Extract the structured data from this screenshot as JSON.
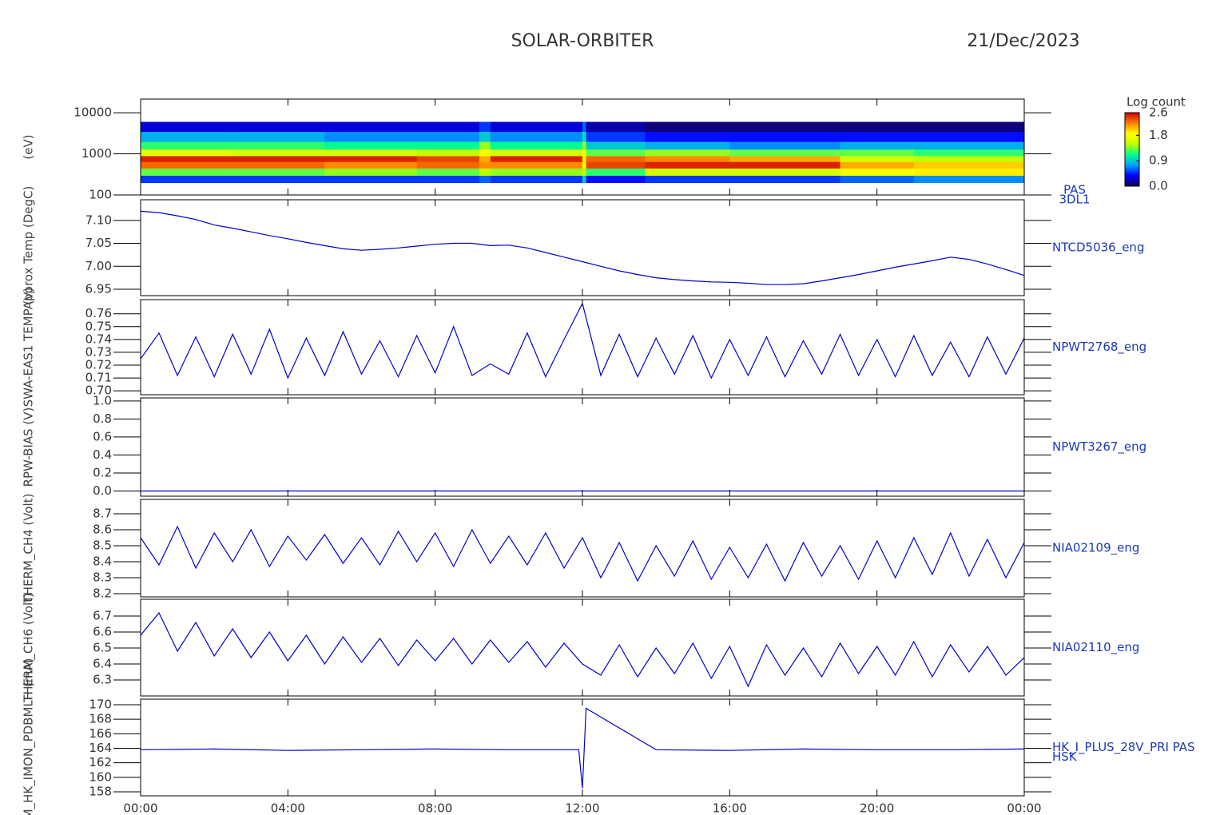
{
  "header": {
    "title": "SOLAR-ORBITER",
    "date": "21/Dec/2023"
  },
  "chart_data": [
    {
      "type": "heatmap",
      "ylabel": "(eV)",
      "right_label": [
        "PAS",
        "3DL1"
      ],
      "log": true,
      "ylim": [
        100,
        21500
      ],
      "yticks": [
        100,
        1000,
        10000
      ],
      "x_edges": [
        0,
        2.5,
        5,
        7.5,
        9.2,
        9.5,
        12,
        12.1,
        13.7,
        16,
        19,
        21,
        24
      ],
      "y_edges": [
        200,
        300,
        450,
        650,
        900,
        1300,
        2000,
        3500,
        6000
      ],
      "z": [
        [
          0.5,
          1.3,
          2.3,
          2.5,
          1.7,
          1.2,
          0.8,
          0.3
        ],
        [
          0.5,
          1.3,
          2.3,
          2.5,
          1.6,
          1.2,
          0.8,
          0.3
        ],
        [
          0.5,
          1.4,
          2.2,
          2.5,
          1.6,
          1.1,
          0.7,
          0.3
        ],
        [
          0.5,
          1.3,
          2.3,
          2.4,
          1.5,
          1.1,
          0.7,
          0.3
        ],
        [
          0.6,
          1.5,
          2.2,
          2.1,
          1.8,
          1.4,
          0.9,
          0.5
        ],
        [
          0.5,
          1.4,
          2.2,
          2.5,
          1.6,
          1.1,
          0.7,
          0.3
        ],
        [
          0.9,
          1.5,
          1.8,
          1.9,
          1.8,
          1.4,
          1.0,
          0.6
        ],
        [
          0.4,
          1.2,
          2.4,
          2.3,
          1.3,
          0.9,
          0.5,
          0.2
        ],
        [
          0.5,
          1.6,
          2.5,
          2.2,
          1.4,
          0.8,
          0.4,
          0.1
        ],
        [
          0.5,
          1.6,
          2.5,
          2.1,
          1.3,
          0.7,
          0.4,
          0.1
        ],
        [
          0.6,
          1.8,
          2.1,
          1.6,
          1.3,
          0.8,
          0.4,
          0.1
        ],
        [
          0.7,
          1.9,
          2.0,
          1.5,
          1.2,
          0.8,
          0.4,
          0.1
        ]
      ],
      "colorbar_label": "Log count",
      "zlim": [
        0,
        2.6
      ],
      "zticks": [
        {
          "value": 0,
          "label": "0.0"
        },
        0.9,
        1.8,
        2.6
      ],
      "colormap": [
        "#14004a",
        "#0000ff",
        "#00a0ff",
        "#00ff90",
        "#c0ff00",
        "#ffff00",
        "#ff8000",
        "#d00000"
      ]
    },
    {
      "type": "line",
      "ylabel": "Approx Temp (DegC)",
      "right_label": [
        "NTCD5036_eng"
      ],
      "color": "#0000d0",
      "ylim": [
        6.936,
        7.145
      ],
      "yticks": [
        6.95,
        {
          "value": 7,
          "label": "7.00"
        },
        7.05,
        {
          "value": 7.1,
          "label": "7.10"
        }
      ],
      "x": [
        0,
        0.5,
        1,
        1.5,
        2,
        2.5,
        3,
        3.5,
        4,
        4.5,
        5,
        5.5,
        6,
        6.5,
        7,
        7.5,
        8,
        8.5,
        9,
        9.5,
        10,
        10.5,
        11,
        11.5,
        12,
        12.5,
        13,
        13.5,
        14,
        14.5,
        15,
        15.5,
        16,
        16.5,
        17,
        17.5,
        18,
        18.5,
        19,
        19.5,
        20,
        20.5,
        21,
        21.5,
        22,
        22.5,
        23,
        23.5,
        24
      ],
      "values": [
        7.12,
        7.117,
        7.11,
        7.102,
        7.09,
        7.083,
        7.075,
        7.067,
        7.06,
        7.052,
        7.045,
        7.038,
        7.035,
        7.037,
        7.04,
        7.044,
        7.048,
        7.05,
        7.05,
        7.045,
        7.046,
        7.04,
        7.03,
        7.02,
        7.01,
        7.0,
        6.99,
        6.982,
        6.975,
        6.971,
        6.968,
        6.966,
        6.965,
        6.963,
        6.96,
        6.96,
        6.962,
        6.968,
        6.975,
        6.982,
        6.99,
        6.998,
        7.005,
        7.012,
        7.02,
        7.015,
        7.005,
        6.993,
        6.98
      ]
    },
    {
      "type": "line",
      "ylabel": "SWA-EAS1 TEMP (V)",
      "right_label": [
        "NPWT2768_eng"
      ],
      "color": "#0000d0",
      "ylim": [
        0.697,
        0.771
      ],
      "yticks": [
        {
          "value": 0.7,
          "label": "0.70"
        },
        0.71,
        0.72,
        0.73,
        0.74,
        0.75,
        0.76
      ],
      "x": [
        0,
        0.5,
        1,
        1.5,
        2,
        2.5,
        3,
        3.5,
        4,
        4.5,
        5,
        5.5,
        6,
        6.5,
        7,
        7.5,
        8,
        8.5,
        9,
        9.5,
        10,
        10.5,
        11,
        11.5,
        12,
        12.5,
        13,
        13.5,
        14,
        14.5,
        15,
        15.5,
        16,
        16.5,
        17,
        17.5,
        18,
        18.5,
        19,
        19.5,
        20,
        20.5,
        21,
        21.5,
        22,
        22.5,
        23,
        23.5,
        24
      ],
      "values": [
        0.725,
        0.745,
        0.712,
        0.742,
        0.711,
        0.744,
        0.713,
        0.748,
        0.71,
        0.741,
        0.712,
        0.746,
        0.713,
        0.739,
        0.711,
        0.743,
        0.714,
        0.75,
        0.712,
        0.721,
        0.713,
        0.745,
        0.711,
        0.74,
        0.768,
        0.712,
        0.744,
        0.711,
        0.741,
        0.713,
        0.743,
        0.71,
        0.74,
        0.712,
        0.742,
        0.711,
        0.739,
        0.713,
        0.744,
        0.712,
        0.74,
        0.711,
        0.743,
        0.712,
        0.738,
        0.711,
        0.742,
        0.713,
        0.741
      ]
    },
    {
      "type": "line",
      "ylabel": "RPW-BIAS (V)",
      "right_label": [
        "NPWT3267_eng"
      ],
      "color": "#0000d0",
      "ylim": [
        -0.058,
        1.034
      ],
      "yticks": [
        {
          "value": 0,
          "label": "0.0"
        },
        0.2,
        0.4,
        0.6,
        0.8,
        {
          "value": 1,
          "label": "1.0"
        }
      ],
      "x": [
        0,
        0.5,
        1,
        1.5,
        2,
        2.5,
        3,
        3.5,
        4,
        4.5,
        5,
        5.5,
        6,
        6.5,
        7,
        7.5,
        8,
        8.5,
        9,
        9.5,
        10,
        10.5,
        11,
        11.5,
        12,
        12.5,
        13,
        13.5,
        14,
        14.5,
        15,
        15.5,
        16,
        16.5,
        17,
        17.5,
        18,
        18.5,
        19,
        19.5,
        20,
        20.5,
        21,
        21.5,
        22,
        22.5,
        23,
        23.5,
        24
      ],
      "values": [
        0,
        0,
        0,
        0,
        0,
        0,
        0,
        0,
        0,
        0,
        0,
        0,
        0,
        0,
        0,
        0,
        0,
        0,
        0,
        0,
        0,
        0,
        0,
        0,
        0,
        0,
        0,
        0,
        0,
        0,
        0,
        0,
        0,
        0,
        0,
        0,
        0,
        0,
        0,
        0,
        0,
        0,
        0,
        0,
        0,
        0,
        0,
        0,
        0
      ]
    },
    {
      "type": "line",
      "ylabel": "THERM_CH4 (Volt)",
      "right_label": [
        "NIA02109_eng"
      ],
      "color": "#0000d0",
      "ylim": [
        8.18,
        8.79
      ],
      "yticks": [
        8.2,
        8.3,
        8.4,
        8.5,
        8.6,
        8.7
      ],
      "x": [
        0,
        0.5,
        1,
        1.5,
        2,
        2.5,
        3,
        3.5,
        4,
        4.5,
        5,
        5.5,
        6,
        6.5,
        7,
        7.5,
        8,
        8.5,
        9,
        9.5,
        10,
        10.5,
        11,
        11.5,
        12,
        12.5,
        13,
        13.5,
        14,
        14.5,
        15,
        15.5,
        16,
        16.5,
        17,
        17.5,
        18,
        18.5,
        19,
        19.5,
        20,
        20.5,
        21,
        21.5,
        22,
        22.5,
        23,
        23.5,
        24
      ],
      "values": [
        8.55,
        8.38,
        8.62,
        8.36,
        8.58,
        8.4,
        8.6,
        8.37,
        8.56,
        8.41,
        8.57,
        8.39,
        8.55,
        8.38,
        8.59,
        8.4,
        8.58,
        8.37,
        8.6,
        8.39,
        8.56,
        8.38,
        8.58,
        8.36,
        8.55,
        8.3,
        8.52,
        8.28,
        8.5,
        8.31,
        8.53,
        8.29,
        8.49,
        8.3,
        8.51,
        8.28,
        8.52,
        8.31,
        8.5,
        8.29,
        8.53,
        8.3,
        8.55,
        8.32,
        8.58,
        8.31,
        8.54,
        8.3,
        8.52
      ]
    },
    {
      "type": "line",
      "ylabel": "THERM_CH6 (Volt)",
      "right_label": [
        "NIA02110_eng"
      ],
      "color": "#0000d0",
      "ylim": [
        6.2,
        6.805
      ],
      "yticks": [
        6.3,
        6.4,
        6.5,
        6.6,
        6.7
      ],
      "x": [
        0,
        0.5,
        1,
        1.5,
        2,
        2.5,
        3,
        3.5,
        4,
        4.5,
        5,
        5.5,
        6,
        6.5,
        7,
        7.5,
        8,
        8.5,
        9,
        9.5,
        10,
        10.5,
        11,
        11.5,
        12,
        12.5,
        13,
        13.5,
        14,
        14.5,
        15,
        15.5,
        16,
        16.5,
        17,
        17.5,
        18,
        18.5,
        19,
        19.5,
        20,
        20.5,
        21,
        21.5,
        22,
        22.5,
        23,
        23.5,
        24
      ],
      "values": [
        6.58,
        6.72,
        6.48,
        6.66,
        6.45,
        6.62,
        6.44,
        6.6,
        6.42,
        6.58,
        6.4,
        6.57,
        6.41,
        6.56,
        6.39,
        6.55,
        6.42,
        6.56,
        6.4,
        6.55,
        6.41,
        6.54,
        6.38,
        6.53,
        6.4,
        6.33,
        6.52,
        6.32,
        6.5,
        6.34,
        6.53,
        6.31,
        6.51,
        6.26,
        6.52,
        6.33,
        6.5,
        6.32,
        6.53,
        6.34,
        6.51,
        6.33,
        6.54,
        6.32,
        6.52,
        6.35,
        6.51,
        6.33,
        6.44
      ]
    },
    {
      "type": "line",
      "ylabel": "RDM_HK_IMON_PDBMLH (mA)",
      "right_label": [
        "HK_I_PLUS_28V_PRI PAS",
        "HSK"
      ],
      "color": "#0000d0",
      "ylim": [
        157.45,
        170.77
      ],
      "yticks": [
        158,
        160,
        162,
        164,
        166,
        168,
        170
      ],
      "x": [
        0,
        2,
        4,
        6,
        8,
        10,
        11.9,
        12,
        12.1,
        14,
        16,
        18,
        20,
        22,
        24
      ],
      "values": [
        163.8,
        163.9,
        163.7,
        163.8,
        163.9,
        163.8,
        163.8,
        158.5,
        169.5,
        163.8,
        163.7,
        163.9,
        163.8,
        163.8,
        163.9
      ],
      "xlim": [
        0,
        24
      ],
      "xticks": [
        {
          "value": 0,
          "label": "00:00"
        },
        {
          "value": 4,
          "label": "04:00"
        },
        {
          "value": 8,
          "label": "08:00"
        },
        {
          "value": 12,
          "label": "12:00"
        },
        {
          "value": 16,
          "label": "16:00"
        },
        {
          "value": 20,
          "label": "20:00"
        },
        {
          "value": 24,
          "label": "00:00"
        }
      ]
    }
  ]
}
